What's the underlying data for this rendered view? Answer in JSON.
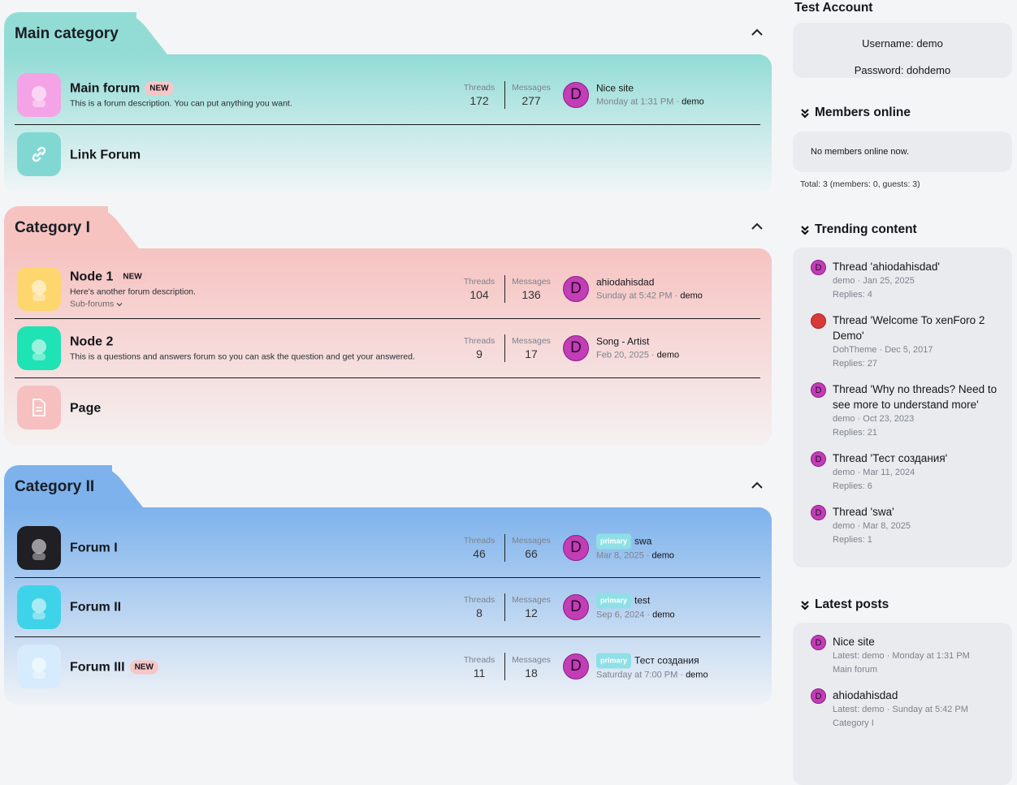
{
  "categories": [
    {
      "title": "Main category",
      "nodes": [
        {
          "title": "Main forum",
          "badge": "NEW",
          "description": "This is a forum description. You can put anything you want.",
          "threads": 172,
          "messages": 277,
          "last_avatar": "D",
          "last_title": "Nice site",
          "last_date": "Monday at 1:31 PM ·",
          "last_user": "demo"
        },
        {
          "title": "Link Forum"
        }
      ]
    },
    {
      "title": "Category I",
      "nodes": [
        {
          "title": "Node 1",
          "badge": "NEW",
          "description": "Here's another forum description.",
          "subforums": "Sub-forums",
          "threads": 104,
          "messages": 136,
          "last_avatar": "D",
          "last_title": "ahiodahisdad",
          "last_date": "Sunday at 5:42 PM ·",
          "last_user": "demo"
        },
        {
          "title": "Node 2",
          "description": "This is a questions and answers forum so you can ask the question and get your answered.",
          "threads": 9,
          "messages": 17,
          "last_avatar": "D",
          "last_title": "Song - Artist",
          "last_date": "Feb 20, 2025 ·",
          "last_user": "demo"
        },
        {
          "title": "Page"
        }
      ]
    },
    {
      "title": "Category II",
      "nodes": [
        {
          "title": "Forum I",
          "threads": 46,
          "messages": 66,
          "last_avatar": "D",
          "last_prefix": "primary",
          "last_title": "swa",
          "last_date": "Mar 8, 2025 ·",
          "last_user": "demo"
        },
        {
          "title": "Forum II",
          "threads": 8,
          "messages": 12,
          "last_avatar": "D",
          "last_prefix": "primary",
          "last_title": "test",
          "last_date": "Sep 6, 2024 ·",
          "last_user": "demo"
        },
        {
          "title": "Forum III",
          "badge": "NEW",
          "threads": 11,
          "messages": 18,
          "last_avatar": "D",
          "last_prefix": "primary",
          "last_title": "Тест создания",
          "last_date": "Saturday at 7:00 PM ·",
          "last_user": "demo"
        }
      ]
    }
  ],
  "stat_labels": {
    "threads": "Threads",
    "messages": "Messages"
  },
  "sidebar": {
    "account": {
      "title": "Test Account",
      "lines": [
        "Username: demo",
        "Password: dohdemo"
      ]
    },
    "members": {
      "title": "Members online",
      "text": "No members online now.",
      "total": "Total: 3 (members: 0, guests: 3)"
    },
    "trending": {
      "title": "Trending content",
      "items": [
        {
          "avatar": "D",
          "title": "Thread 'ahiodahisdad'",
          "meta": "demo · Jan 25, 2025",
          "replies": "Replies: 4"
        },
        {
          "title": "Thread 'Welcome To xenForo 2 Demo'",
          "meta": "DohTheme · Dec 5, 2017",
          "replies": "Replies: 27"
        },
        {
          "avatar": "D",
          "title": "Thread 'Why no threads? Need to see more to understand more'",
          "meta": "demo · Oct 23, 2023",
          "replies": "Replies: 21"
        },
        {
          "avatar": "D",
          "title": "Thread 'Тест создания'",
          "meta": "demo · Mar 11, 2024",
          "replies": "Replies: 6"
        },
        {
          "avatar": "D",
          "title": "Thread 'swa'",
          "meta": "demo · Mar 8, 2025",
          "replies": "Replies: 1"
        }
      ]
    },
    "latest": {
      "title": "Latest posts",
      "items": [
        {
          "avatar": "D",
          "title": "Nice site",
          "meta": "Latest: demo · Monday at 1:31 PM",
          "forum": "Main forum"
        },
        {
          "avatar": "D",
          "title": "ahiodahisdad",
          "meta": "Latest: demo · Sunday at 5:42 PM",
          "forum": "Category I"
        }
      ]
    }
  }
}
